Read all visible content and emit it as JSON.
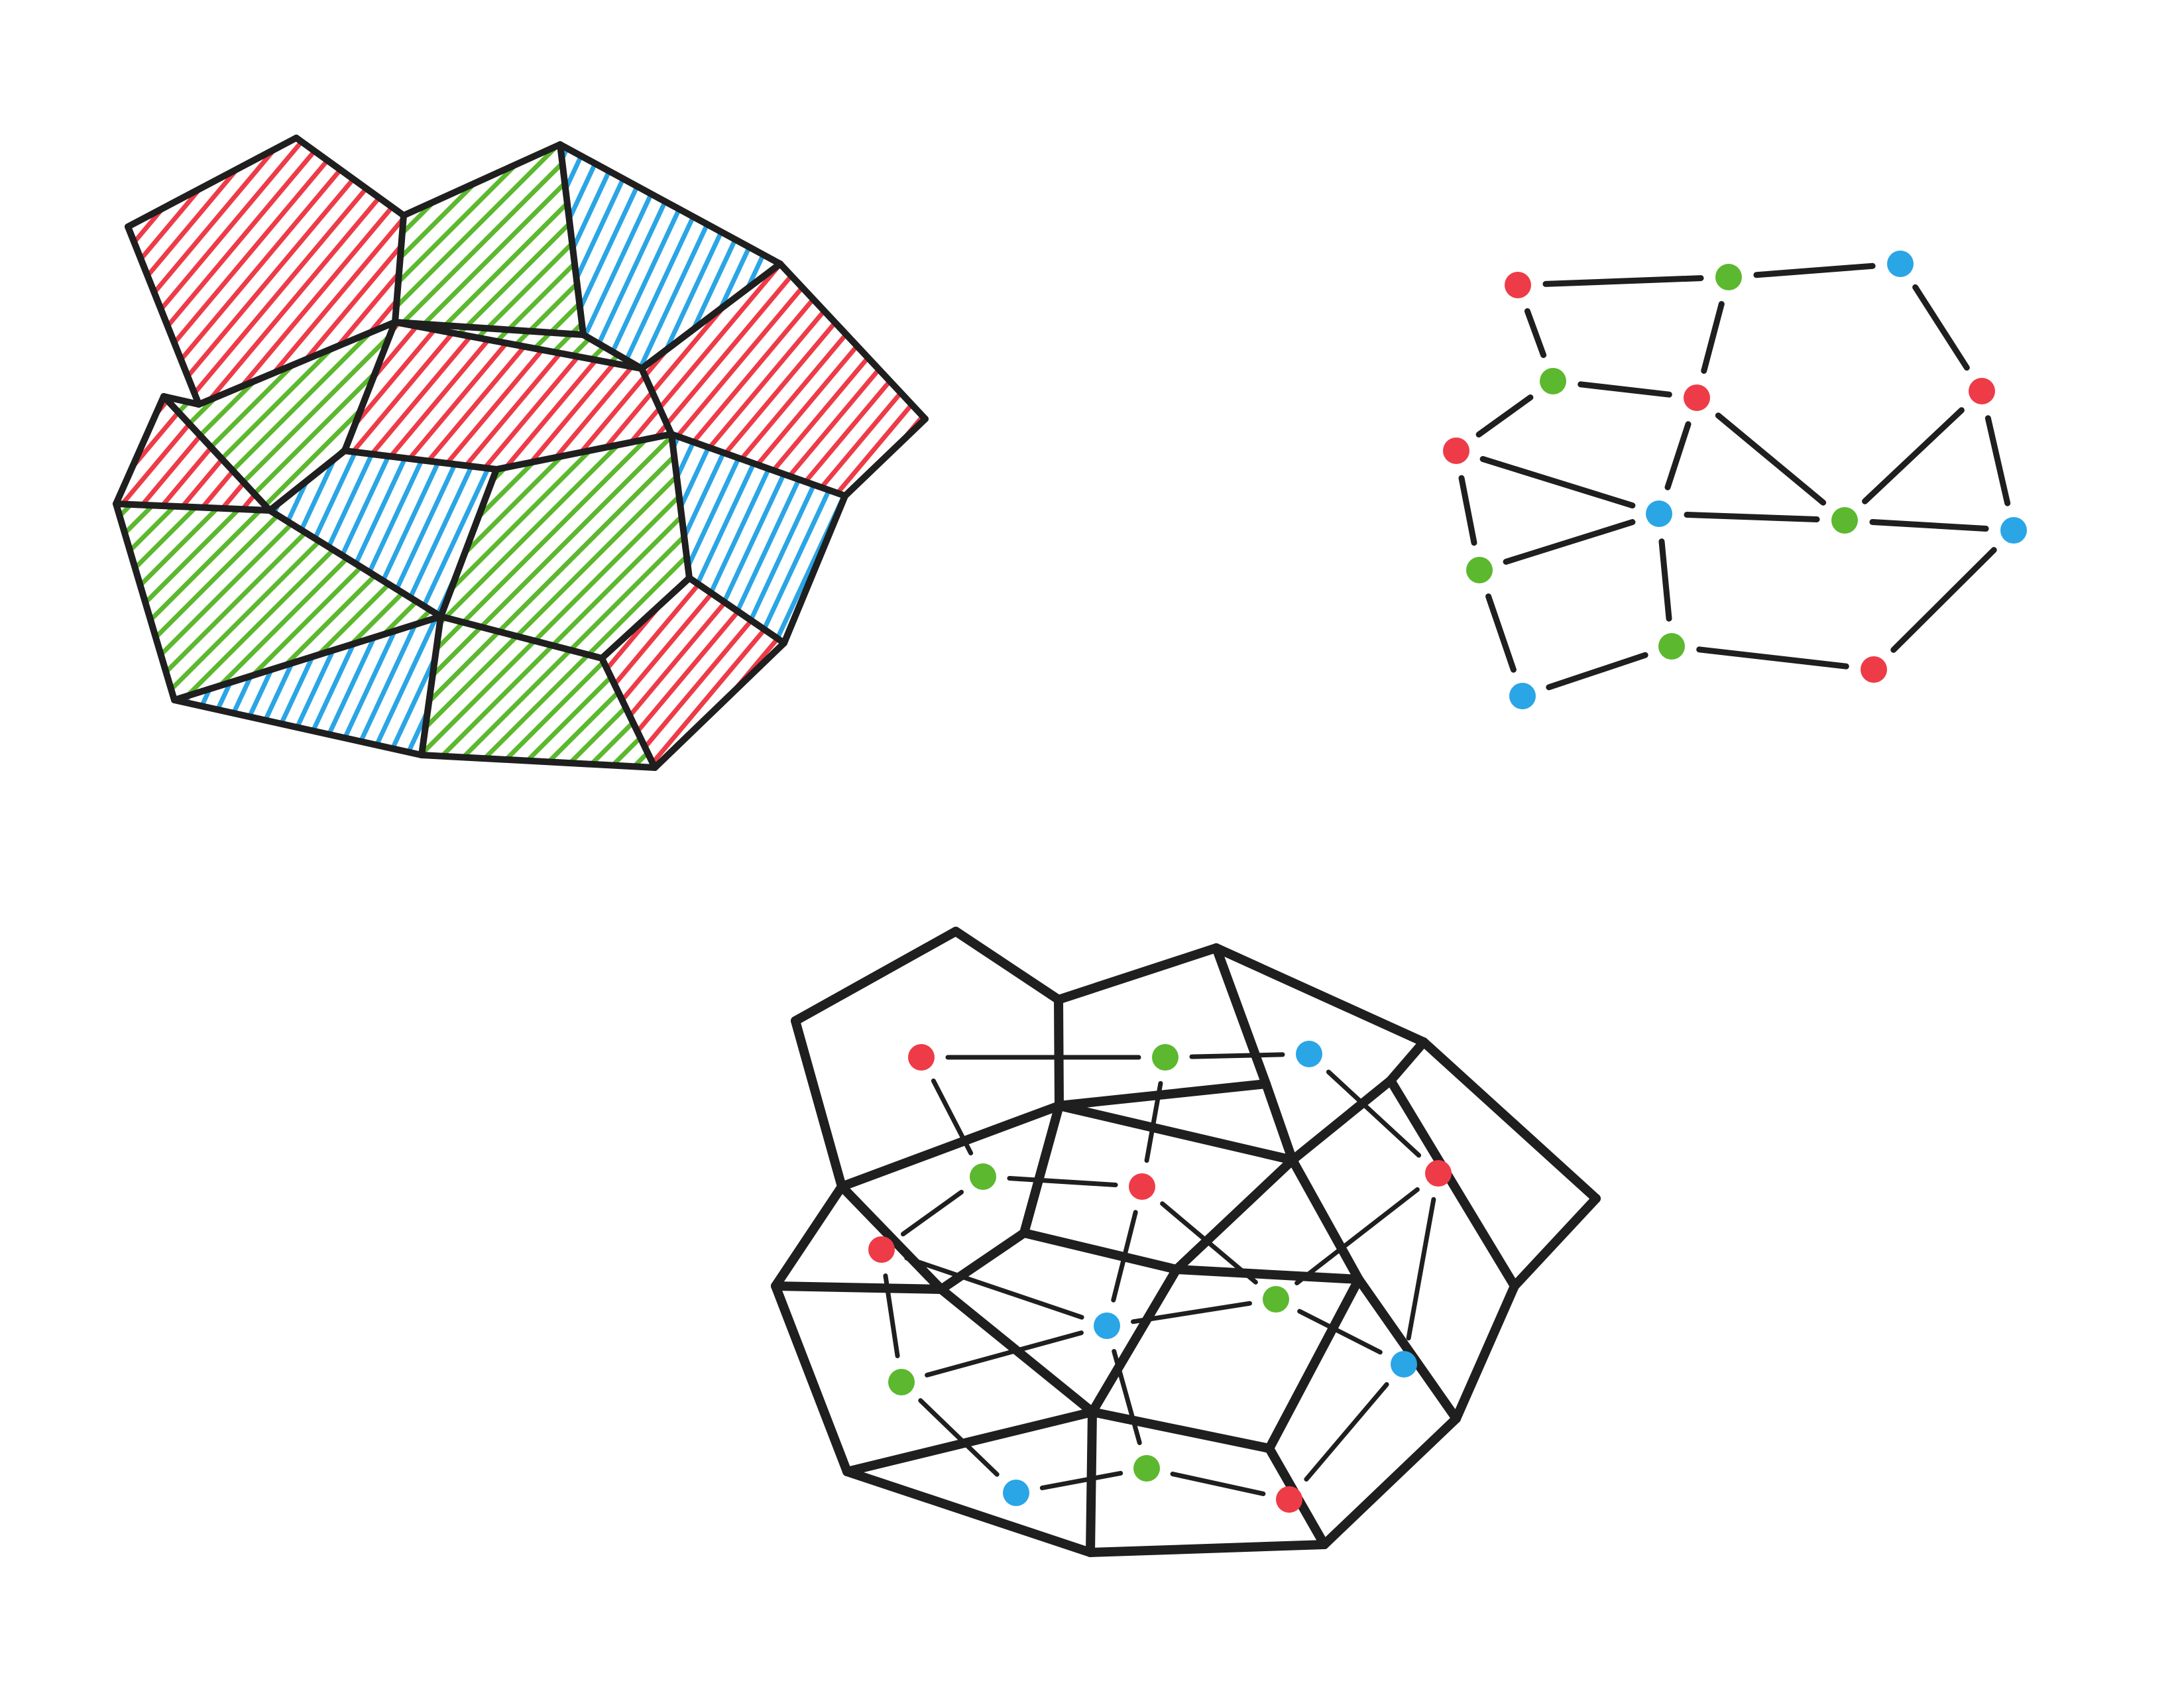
{
  "colors": {
    "ink": "#1f1f1f",
    "red": "#ee3b48",
    "green": "#5cb82e",
    "blue": "#2aa5e6",
    "paper": "#ffffff"
  },
  "tiling": {
    "tiles": [
      {
        "id": "t1",
        "color": "red"
      },
      {
        "id": "t2",
        "color": "green"
      },
      {
        "id": "t3",
        "color": "blue"
      },
      {
        "id": "t4",
        "color": "red"
      },
      {
        "id": "t5",
        "color": "green"
      },
      {
        "id": "t6",
        "color": "red"
      },
      {
        "id": "t7",
        "color": "red"
      },
      {
        "id": "t8",
        "color": "blue"
      },
      {
        "id": "t9",
        "color": "green"
      },
      {
        "id": "t10",
        "color": "blue"
      },
      {
        "id": "t11",
        "color": "green"
      },
      {
        "id": "t12",
        "color": "blue"
      },
      {
        "id": "t13",
        "color": "green"
      },
      {
        "id": "t14",
        "color": "red"
      }
    ]
  },
  "graph": {
    "nodes": [
      {
        "id": "n1",
        "color": "red"
      },
      {
        "id": "n2",
        "color": "green"
      },
      {
        "id": "n3",
        "color": "blue"
      },
      {
        "id": "n4",
        "color": "green"
      },
      {
        "id": "n5",
        "color": "red"
      },
      {
        "id": "n6",
        "color": "red"
      },
      {
        "id": "n7",
        "color": "red"
      },
      {
        "id": "n8",
        "color": "blue"
      },
      {
        "id": "n9",
        "color": "green"
      },
      {
        "id": "n10",
        "color": "blue"
      },
      {
        "id": "n11",
        "color": "green"
      },
      {
        "id": "n12",
        "color": "green"
      },
      {
        "id": "n13",
        "color": "blue"
      },
      {
        "id": "n14",
        "color": "red"
      }
    ],
    "edges": [
      [
        "n1",
        "n2"
      ],
      [
        "n2",
        "n3"
      ],
      [
        "n1",
        "n4"
      ],
      [
        "n2",
        "n5"
      ],
      [
        "n4",
        "n5"
      ],
      [
        "n3",
        "n6"
      ],
      [
        "n4",
        "n7"
      ],
      [
        "n5",
        "n8"
      ],
      [
        "n5",
        "n9"
      ],
      [
        "n7",
        "n8"
      ],
      [
        "n6",
        "n9"
      ],
      [
        "n6",
        "n10"
      ],
      [
        "n8",
        "n9"
      ],
      [
        "n9",
        "n10"
      ],
      [
        "n7",
        "n11"
      ],
      [
        "n8",
        "n11"
      ],
      [
        "n8",
        "n12"
      ],
      [
        "n11",
        "n13"
      ],
      [
        "n12",
        "n14"
      ],
      [
        "n10",
        "n14"
      ],
      [
        "n12",
        "n13"
      ]
    ]
  },
  "overlay": {
    "nodes": [
      {
        "id": "o1",
        "color": "red"
      },
      {
        "id": "o2",
        "color": "green"
      },
      {
        "id": "o3",
        "color": "blue"
      },
      {
        "id": "o4",
        "color": "green"
      },
      {
        "id": "o5",
        "color": "red"
      },
      {
        "id": "o6",
        "color": "red"
      },
      {
        "id": "o7",
        "color": "red"
      },
      {
        "id": "o8",
        "color": "green"
      },
      {
        "id": "o9",
        "color": "blue"
      },
      {
        "id": "o10",
        "color": "green"
      },
      {
        "id": "o11",
        "color": "blue"
      },
      {
        "id": "o12",
        "color": "blue"
      },
      {
        "id": "o13",
        "color": "green"
      },
      {
        "id": "o14",
        "color": "red"
      }
    ]
  }
}
